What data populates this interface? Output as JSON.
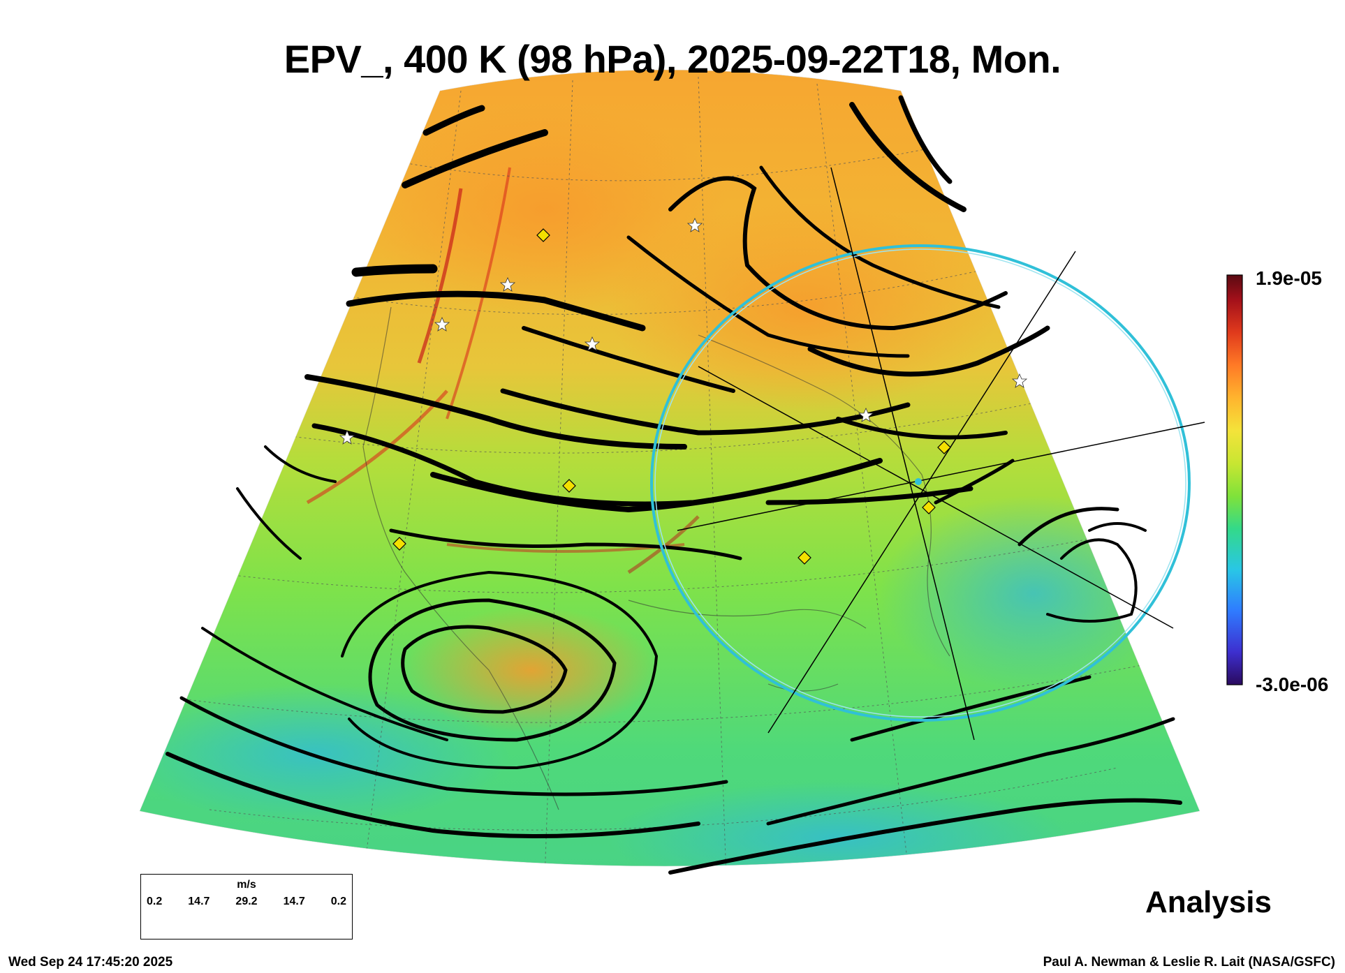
{
  "title": "EPV_, 400 K (98 hPa), 2025-09-22T18, Mon.",
  "label_analysis": "Analysis",
  "timestamp": "Wed Sep 24 17:45:20 2025",
  "credit": "Paul A. Newman & Leslie R. Lait (NASA/GSFC)",
  "colorbar": {
    "max_label": "1.9e-05",
    "min_label": "-3.0e-06",
    "colors": [
      "#2a0a5e",
      "#3d2fcf",
      "#2f7bff",
      "#29c6e6",
      "#33d98a",
      "#7fe23a",
      "#c8e632",
      "#f4e33a",
      "#ffb42e",
      "#ff7a26",
      "#e03a1c",
      "#a3101a",
      "#5a0a12"
    ]
  },
  "wind_legend": {
    "unit": "m/s",
    "values": [
      "0.2",
      "14.7",
      "29.2",
      "14.7",
      "0.2"
    ]
  },
  "icons": {
    "stations": "diamond-marker-icon",
    "sites": "star-marker-icon",
    "focus": "focus-circle-icon"
  }
}
